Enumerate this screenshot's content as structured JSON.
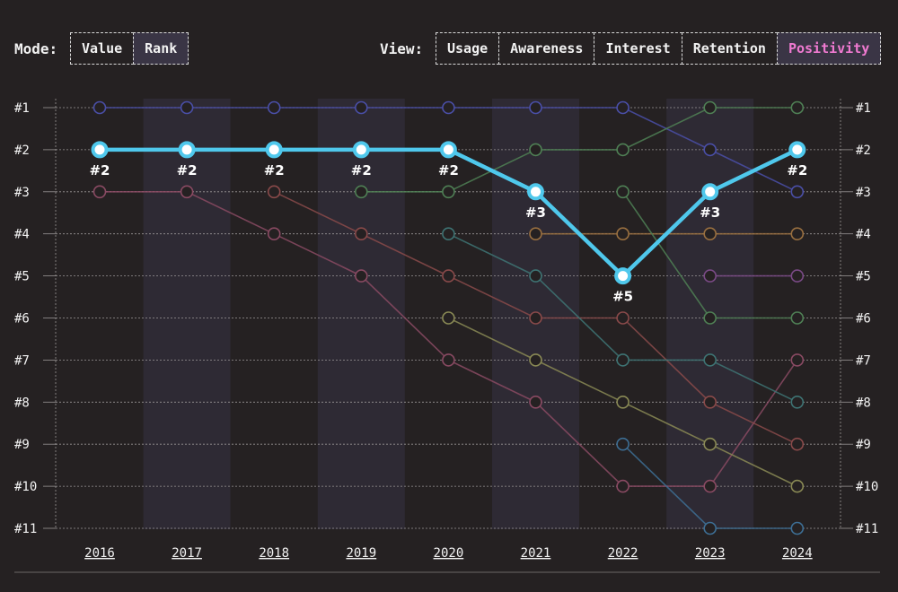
{
  "controls": {
    "mode_label": "Mode:",
    "mode_options": [
      "Value",
      "Rank"
    ],
    "mode_selected": "Rank",
    "view_label": "View:",
    "view_options": [
      "Usage",
      "Awareness",
      "Interest",
      "Retention",
      "Positivity"
    ],
    "view_selected": "Positivity"
  },
  "chart_data": {
    "type": "line",
    "x": [
      "2016",
      "2017",
      "2018",
      "2019",
      "2020",
      "2021",
      "2022",
      "2023",
      "2024"
    ],
    "y_ticks": [
      "#1",
      "#2",
      "#3",
      "#4",
      "#5",
      "#6",
      "#7",
      "#8",
      "#9",
      "#10",
      "#11"
    ],
    "ylim": [
      1,
      11
    ],
    "y_inverted": true,
    "highlight_color": "#4fc8ec",
    "highlight": {
      "values": [
        2,
        2,
        2,
        2,
        2,
        3,
        5,
        3,
        2
      ],
      "labels": [
        "#2",
        "#2",
        "#2",
        "#2",
        "#2",
        "#3",
        "#5",
        "#3",
        "#2"
      ]
    },
    "series": [
      {
        "color": "#4a4fa8",
        "values": [
          1,
          1,
          1,
          1,
          1,
          1,
          1,
          2,
          3
        ]
      },
      {
        "color": "#8a4a63",
        "values": [
          3,
          3,
          4,
          5,
          7,
          8,
          10,
          10,
          7
        ]
      },
      {
        "color": "#8a4a4a",
        "values": [
          null,
          null,
          3,
          4,
          5,
          6,
          6,
          8,
          9
        ]
      },
      {
        "color": "#4f8055",
        "values": [
          null,
          null,
          null,
          3,
          3,
          2,
          2,
          1,
          1
        ]
      },
      {
        "color": "#3e7474",
        "values": [
          null,
          null,
          null,
          null,
          4,
          5,
          7,
          7,
          8
        ]
      },
      {
        "color": "#8a8a55",
        "values": [
          null,
          null,
          null,
          null,
          6,
          7,
          8,
          9,
          10
        ]
      },
      {
        "color": "#9a7040",
        "values": [
          null,
          null,
          null,
          null,
          null,
          4,
          4,
          4,
          4
        ]
      },
      {
        "color": "#4f8055",
        "values": [
          null,
          null,
          null,
          null,
          null,
          null,
          3,
          6,
          6
        ]
      },
      {
        "color": "#3d6e94",
        "values": [
          null,
          null,
          null,
          null,
          null,
          null,
          9,
          11,
          11
        ]
      },
      {
        "color": "#7a4a86",
        "values": [
          null,
          null,
          null,
          null,
          null,
          null,
          null,
          5,
          5
        ]
      }
    ]
  }
}
